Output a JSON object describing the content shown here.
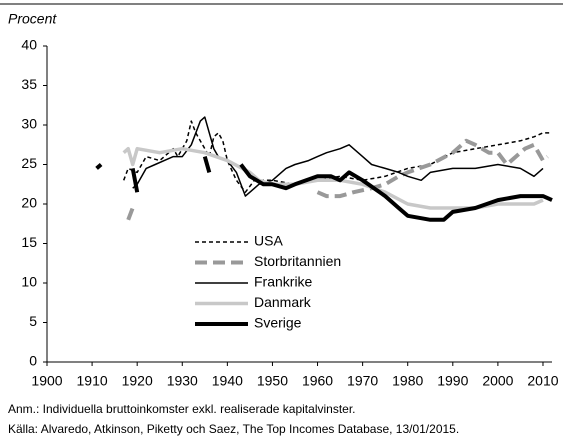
{
  "chart_data": {
    "type": "line",
    "y_label": "Procent",
    "xlim": [
      1900,
      2012
    ],
    "xticks": [
      1900,
      1910,
      1920,
      1930,
      1940,
      1950,
      1960,
      1970,
      1980,
      1990,
      2000,
      2010
    ],
    "ylim": [
      0,
      40
    ],
    "yticks": [
      0,
      5,
      10,
      15,
      20,
      25,
      30,
      35,
      40
    ],
    "legend": "center",
    "notes": [
      "Anm.: Individuella bruttoinkomster exkl. realiserade kapitalvinster.",
      "Källa: Alvaredo, Atkinson, Piketty och Saez, The Top Incomes Database, 13/01/2015."
    ],
    "series": [
      {
        "name": "USA",
        "color": "#000000",
        "style": "dashed-thin",
        "x": [
          1917,
          1918,
          1920,
          1922,
          1925,
          1928,
          1929,
          1931,
          1932,
          1933,
          1935,
          1936,
          1937,
          1938,
          1939,
          1940,
          1942,
          1944,
          1946,
          1950,
          1955,
          1960,
          1965,
          1970,
          1975,
          1980,
          1985,
          1990,
          1995,
          2000,
          2005,
          2008,
          2010,
          2012
        ],
        "values": [
          23,
          24.5,
          24,
          26,
          25.5,
          27,
          26,
          28,
          30.5,
          29,
          27,
          26,
          28.5,
          29,
          28,
          25.5,
          23,
          21.5,
          23,
          23,
          22.5,
          23,
          23.5,
          23,
          23.5,
          24.5,
          25,
          26.5,
          27,
          27.5,
          28,
          28.5,
          29,
          29
        ]
      },
      {
        "name": "Storbritannien",
        "color": "#999999",
        "style": "dashed-thick",
        "x": [
          1918,
          1919,
          1940,
          1960,
          1962,
          1965,
          1968,
          1972,
          1975,
          1978,
          1980,
          1985,
          1990,
          1993,
          1995,
          1998,
          2000,
          2002,
          2004,
          2006,
          2008,
          2010,
          2011
        ],
        "values": [
          18,
          19.5,
          null,
          21.5,
          21,
          21,
          21.5,
          22,
          22.5,
          23.5,
          24,
          25,
          26.5,
          28,
          27.5,
          26.5,
          26.5,
          25,
          26,
          27,
          27.5,
          25.5,
          26
        ]
      },
      {
        "name": "Frankrike",
        "color": "#000000",
        "style": "solid-thin",
        "x": [
          1919,
          1920,
          1922,
          1924,
          1926,
          1928,
          1930,
          1932,
          1934,
          1935,
          1936,
          1937,
          1938,
          1940,
          1942,
          1944,
          1945,
          1947,
          1950,
          1953,
          1955,
          1958,
          1960,
          1962,
          1965,
          1967,
          1970,
          1972,
          1975,
          1978,
          1980,
          1983,
          1985,
          1990,
          1995,
          2000,
          2005,
          2008,
          2010
        ],
        "values": [
          22,
          22.5,
          24.5,
          25,
          25.5,
          26,
          26,
          27.5,
          30.5,
          31,
          29,
          27,
          26,
          25.5,
          24,
          21,
          21.5,
          22.5,
          23,
          24.5,
          25,
          25.5,
          26,
          26.5,
          27,
          27.5,
          26,
          25,
          24.5,
          24,
          23.5,
          23,
          24,
          24.5,
          24.5,
          25,
          24.5,
          23.5,
          24.5
        ]
      },
      {
        "name": "Danmark",
        "color": "#c8c8c8",
        "style": "solid-thick",
        "x": [
          1917,
          1918,
          1919,
          1920,
          1925,
          1930,
          1935,
          1940,
          1945,
          1947,
          1950,
          1955,
          1960,
          1965,
          1970,
          1975,
          1980,
          1985,
          1990,
          1995,
          2000,
          2005,
          2008,
          2010
        ],
        "values": [
          26.5,
          27,
          25,
          27,
          26.5,
          27,
          26.5,
          25.5,
          24,
          23,
          22.5,
          22.5,
          23,
          23,
          22.5,
          21.5,
          20,
          19.5,
          19.5,
          19.5,
          20,
          20,
          20,
          20.5
        ]
      },
      {
        "name": "Sverige",
        "color": "#000000",
        "style": "solid-bold",
        "x": [
          1911,
          1912,
          1915,
          1919,
          1920,
          1928,
          1935,
          1936,
          1940,
          1943,
          1945,
          1948,
          1950,
          1953,
          1955,
          1960,
          1963,
          1965,
          1967,
          1970,
          1975,
          1978,
          1980,
          1985,
          1988,
          1990,
          1995,
          2000,
          2005,
          2010,
          2012
        ],
        "values": [
          24.5,
          25,
          null,
          24.5,
          21.5,
          null,
          26,
          24,
          null,
          25,
          23.5,
          22.5,
          22.5,
          22,
          22.5,
          23.5,
          23.5,
          23,
          24,
          23,
          21,
          19.5,
          18.5,
          18,
          18,
          19,
          19.5,
          20.5,
          21,
          21,
          20.5
        ]
      }
    ]
  }
}
